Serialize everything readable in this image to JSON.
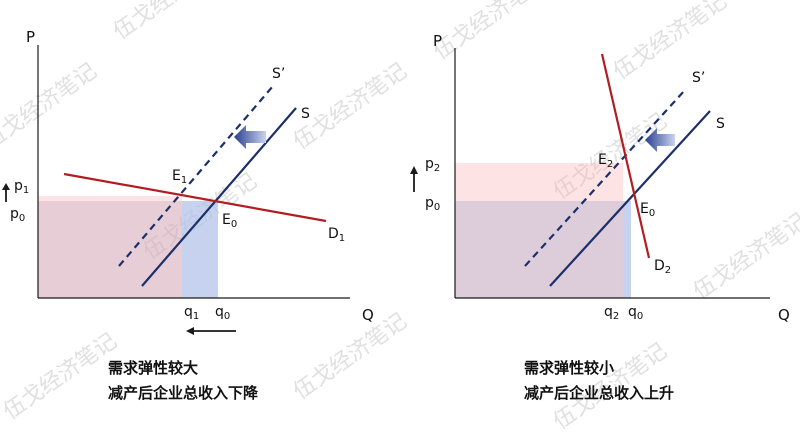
{
  "watermark_text": "伍戈经济笔记",
  "colors": {
    "supply": "#1b2f6b",
    "demand": "#b01e23",
    "rev_before": "rgba(160,160,200,0.35)",
    "rev_after": "rgba(250,175,175,0.35)",
    "gain": "rgba(180,200,240,0.5)",
    "arrow": "#1a1a1a"
  },
  "panels": [
    {
      "axis_y": "P",
      "axis_x": "Q",
      "supply_label": "S",
      "supply_shift_label": "S’",
      "equilibrium_old": {
        "main": "E",
        "sub": "0"
      },
      "equilibrium_new": {
        "main": "E",
        "sub": "1"
      },
      "demand_label": {
        "main": "D",
        "sub": "1"
      },
      "price_old": {
        "main": "p",
        "sub": "0"
      },
      "price_new": {
        "main": "p",
        "sub": "1"
      },
      "qty_old": {
        "main": "q",
        "sub": "0"
      },
      "qty_new": {
        "main": "q",
        "sub": "1"
      },
      "caption_line1": "需求弹性较大",
      "caption_line2": "减产后企业总收入下降"
    },
    {
      "axis_y": "P",
      "axis_x": "Q",
      "supply_label": "S",
      "supply_shift_label": "S’",
      "equilibrium_old": {
        "main": "E",
        "sub": "0"
      },
      "equilibrium_new": {
        "main": "E",
        "sub": "2"
      },
      "demand_label": {
        "main": "D",
        "sub": "2"
      },
      "price_old": {
        "main": "p",
        "sub": "0"
      },
      "price_new": {
        "main": "p",
        "sub": "2"
      },
      "qty_old": {
        "main": "q",
        "sub": "0"
      },
      "qty_new": {
        "main": "q",
        "sub": "2"
      },
      "caption_line1": "需求弹性较小",
      "caption_line2": "减产后企业总收入上升"
    }
  ]
}
